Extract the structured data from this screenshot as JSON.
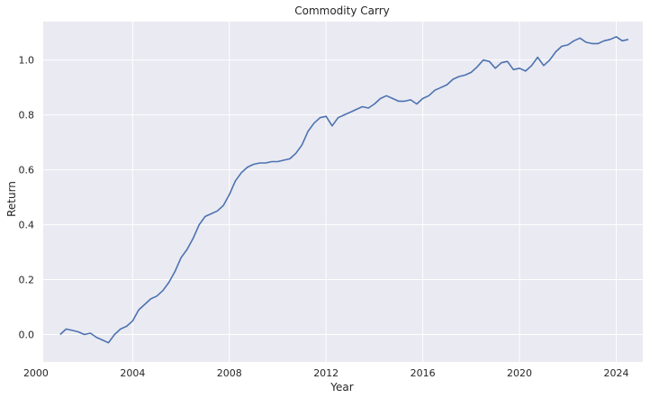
{
  "chart_data": {
    "type": "line",
    "title": "Commodity Carry",
    "xlabel": "Year",
    "ylabel": "Return",
    "xlim": [
      2000.3,
      2025.1
    ],
    "ylim": [
      -0.1,
      1.14
    ],
    "xticks": [
      2000,
      2004,
      2008,
      2012,
      2016,
      2020,
      2024
    ],
    "xtick_labels": [
      "2000",
      "2004",
      "2008",
      "2012",
      "2016",
      "2020",
      "2024"
    ],
    "yticks": [
      0.0,
      0.2,
      0.4,
      0.6,
      0.8,
      1.0
    ],
    "ytick_labels": [
      "0.0",
      "0.2",
      "0.4",
      "0.6",
      "0.8",
      "1.0"
    ],
    "grid": true,
    "colors": {
      "background": "#eaeaf2",
      "grid": "#ffffff",
      "line": "#4c72b0"
    },
    "series": [
      {
        "x": [
          2001.0,
          2001.25,
          2001.5,
          2001.75,
          2002.0,
          2002.25,
          2002.5,
          2002.75,
          2003.0,
          2003.25,
          2003.5,
          2003.75,
          2004.0,
          2004.25,
          2004.5,
          2004.75,
          2005.0,
          2005.25,
          2005.5,
          2005.75,
          2006.0,
          2006.25,
          2006.5,
          2006.75,
          2007.0,
          2007.25,
          2007.5,
          2007.75,
          2008.0,
          2008.25,
          2008.5,
          2008.75,
          2009.0,
          2009.25,
          2009.5,
          2009.75,
          2010.0,
          2010.25,
          2010.5,
          2010.75,
          2011.0,
          2011.25,
          2011.5,
          2011.75,
          2012.0,
          2012.25,
          2012.5,
          2012.75,
          2013.0,
          2013.25,
          2013.5,
          2013.75,
          2014.0,
          2014.25,
          2014.5,
          2014.75,
          2015.0,
          2015.25,
          2015.5,
          2015.75,
          2016.0,
          2016.25,
          2016.5,
          2016.75,
          2017.0,
          2017.25,
          2017.5,
          2017.75,
          2018.0,
          2018.25,
          2018.5,
          2018.75,
          2019.0,
          2019.25,
          2019.5,
          2019.75,
          2020.0,
          2020.25,
          2020.5,
          2020.75,
          2021.0,
          2021.25,
          2021.5,
          2021.75,
          2022.0,
          2022.25,
          2022.5,
          2022.75,
          2023.0,
          2023.25,
          2023.5,
          2023.75,
          2024.0,
          2024.25,
          2024.5
        ],
        "y": [
          0.0,
          0.02,
          0.015,
          0.01,
          0.0,
          0.005,
          -0.01,
          -0.02,
          -0.03,
          0.0,
          0.02,
          0.03,
          0.05,
          0.09,
          0.11,
          0.13,
          0.14,
          0.16,
          0.19,
          0.23,
          0.28,
          0.31,
          0.35,
          0.4,
          0.43,
          0.44,
          0.45,
          0.47,
          0.51,
          0.56,
          0.59,
          0.61,
          0.62,
          0.625,
          0.625,
          0.63,
          0.63,
          0.635,
          0.64,
          0.66,
          0.69,
          0.74,
          0.77,
          0.79,
          0.795,
          0.76,
          0.79,
          0.8,
          0.81,
          0.82,
          0.83,
          0.825,
          0.84,
          0.86,
          0.87,
          0.86,
          0.85,
          0.85,
          0.855,
          0.84,
          0.86,
          0.87,
          0.89,
          0.9,
          0.91,
          0.93,
          0.94,
          0.945,
          0.955,
          0.975,
          1.0,
          0.995,
          0.97,
          0.99,
          0.995,
          0.965,
          0.97,
          0.96,
          0.98,
          1.01,
          0.98,
          1.0,
          1.03,
          1.05,
          1.055,
          1.07,
          1.08,
          1.065,
          1.06,
          1.06,
          1.07,
          1.075,
          1.085,
          1.07,
          1.075
        ]
      }
    ]
  }
}
